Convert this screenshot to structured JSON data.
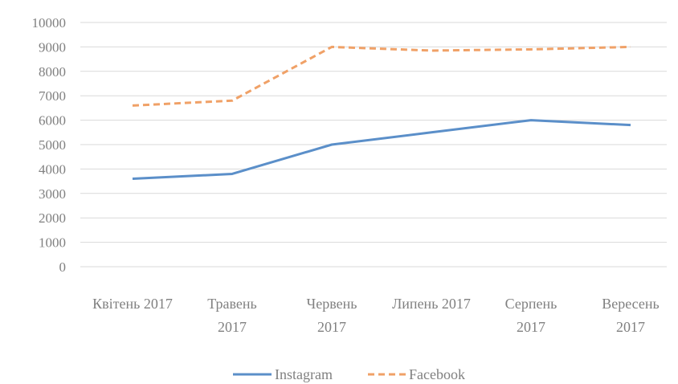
{
  "chart_data": {
    "type": "line",
    "categories": [
      [
        "Квітень 2017"
      ],
      [
        "Травень",
        "2017"
      ],
      [
        "Червень",
        "2017"
      ],
      [
        "Липень 2017"
      ],
      [
        "Серпень",
        "2017"
      ],
      [
        "Вересень",
        "2017"
      ]
    ],
    "series": [
      {
        "name": "Instagram",
        "values": [
          3600,
          3800,
          5000,
          5500,
          6000,
          5800
        ],
        "color": "#5b8fc9",
        "style": "solid"
      },
      {
        "name": "Facebook",
        "values": [
          6600,
          6800,
          9000,
          8850,
          8900,
          9000
        ],
        "color": "#f0a167",
        "style": "dashed"
      }
    ],
    "ylim": [
      0,
      10000
    ],
    "yticks": [
      0,
      1000,
      2000,
      3000,
      4000,
      5000,
      6000,
      7000,
      8000,
      9000,
      10000
    ],
    "grid": true,
    "legend": "bottom",
    "gridline_color": "#d9d9d9"
  }
}
